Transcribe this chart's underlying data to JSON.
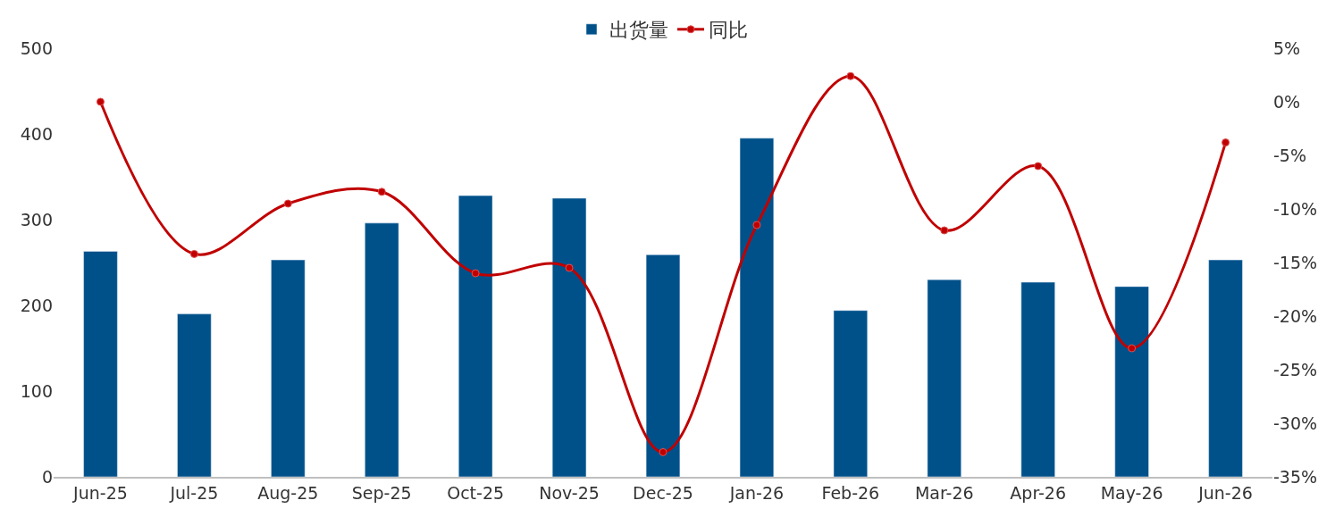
{
  "chart_data": {
    "type": "bar",
    "categories": [
      "Jun-25",
      "Jul-25",
      "Aug-25",
      "Sep-25",
      "Oct-25",
      "Nov-25",
      "Dec-25",
      "Jan-26",
      "Feb-26",
      "Mar-26",
      "Apr-26",
      "May-26",
      "Jun-26"
    ],
    "series": [
      {
        "name": "出货量",
        "color": "#00518a",
        "values": [
          263,
          190,
          253,
          296,
          328,
          325,
          259,
          395,
          194,
          230,
          227,
          222,
          253
        ]
      },
      {
        "name": "同比",
        "type": "line",
        "axis": "y2",
        "color": "#c00000",
        "marker": "circle",
        "values": [
          0.0,
          -14.2,
          -9.5,
          -8.4,
          -16.0,
          -15.5,
          -32.7,
          -11.5,
          2.4,
          -12.0,
          -6.0,
          -23.0,
          -3.8
        ]
      }
    ],
    "ylim": [
      0,
      500
    ],
    "yticks": [
      0,
      100,
      200,
      300,
      400,
      500
    ],
    "y2lim": [
      -35,
      5
    ],
    "y2ticks": [
      {
        "value": 5,
        "label": "5%"
      },
      {
        "value": 0,
        "label": "0%"
      },
      {
        "value": -5,
        "label": "-5%"
      },
      {
        "value": -10,
        "label": "-10%"
      },
      {
        "value": -15,
        "label": "-15%"
      },
      {
        "value": -20,
        "label": "-20%"
      },
      {
        "value": -25,
        "label": "-25%"
      },
      {
        "value": -30,
        "label": "-30%"
      },
      {
        "value": -35,
        "label": "-35%"
      }
    ],
    "legend": "top"
  }
}
